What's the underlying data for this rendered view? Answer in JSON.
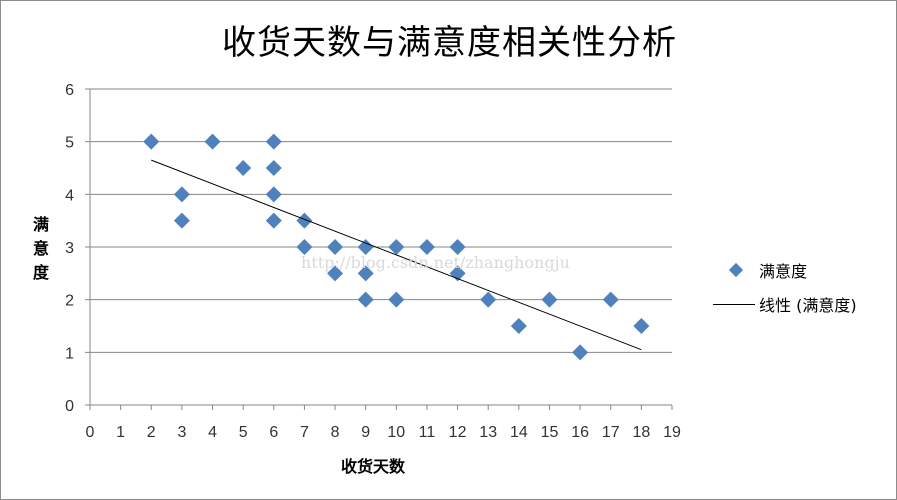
{
  "chart_data": {
    "type": "scatter",
    "title": "收货天数与满意度相关性分析",
    "xlabel": "收货天数",
    "ylabel": "满意度",
    "xlim": [
      0,
      19
    ],
    "ylim": [
      0,
      6
    ],
    "x_ticks": [
      0,
      1,
      2,
      3,
      4,
      5,
      6,
      7,
      8,
      9,
      10,
      11,
      12,
      13,
      14,
      15,
      16,
      17,
      18,
      19
    ],
    "y_ticks": [
      0,
      1,
      2,
      3,
      4,
      5,
      6
    ],
    "grid": "horizontal",
    "legend_position": "right",
    "series": [
      {
        "name": "满意度",
        "marker": "diamond",
        "color": "#4f81bd",
        "points": [
          [
            2,
            5
          ],
          [
            3,
            4
          ],
          [
            3,
            3.5
          ],
          [
            4,
            5
          ],
          [
            5,
            4.5
          ],
          [
            6,
            5
          ],
          [
            6,
            4.5
          ],
          [
            6,
            4
          ],
          [
            6,
            3.5
          ],
          [
            7,
            3.5
          ],
          [
            7,
            3
          ],
          [
            8,
            3
          ],
          [
            8,
            2.5
          ],
          [
            9,
            3
          ],
          [
            9,
            2.5
          ],
          [
            9,
            2
          ],
          [
            10,
            3
          ],
          [
            10,
            2
          ],
          [
            11,
            3
          ],
          [
            12,
            3
          ],
          [
            12,
            2.5
          ],
          [
            13,
            2
          ],
          [
            14,
            1.5
          ],
          [
            15,
            2
          ],
          [
            16,
            1
          ],
          [
            17,
            2
          ],
          [
            18,
            1.5
          ]
        ]
      },
      {
        "name": "线性 (满意度)",
        "type": "line",
        "color": "#000000",
        "points": [
          [
            2,
            4.65
          ],
          [
            18,
            1.05
          ]
        ]
      }
    ],
    "annotations": [
      "http://blog.csdn.net/zhanghongju"
    ]
  },
  "labels": {
    "title": "收货天数与满意度相关性分析",
    "ylabel_chars": [
      "满",
      "意",
      "度"
    ],
    "xlabel": "收货天数",
    "legend_scatter": "满意度",
    "legend_line": "线性 (满意度)",
    "watermark": "http://blog.csdn.net/zhanghongju"
  }
}
